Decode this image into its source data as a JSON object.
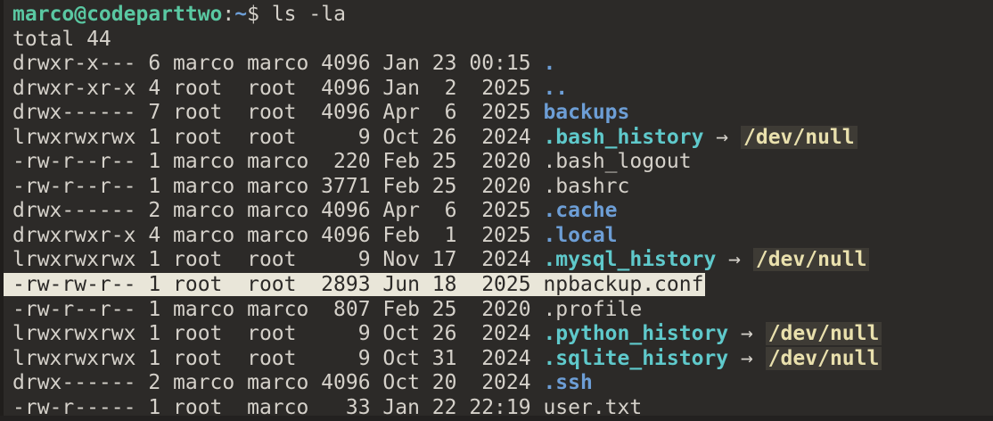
{
  "terminal": {
    "prompt": {
      "user_host": "marco@codeparttwo",
      "separator": ":",
      "cwd": "~",
      "symbol": "$",
      "command": "ls -la"
    },
    "total_line": "total 44",
    "symlink_arrow": "→",
    "colors": {
      "background": "#2c2a28",
      "foreground": "#d5d1ca",
      "prompt_green": "#5ac8a2",
      "directory_blue": "#6d9ed6",
      "symlink_cyan": "#5fc9cb",
      "link_target_yellow": "#e9e0ad",
      "link_target_background": "#3e3b35",
      "selection_background": "#e9e6d9",
      "selection_text": "#2b2927"
    },
    "listing": [
      {
        "perms": "drwxr-x---",
        "links": "6",
        "owner": "marco",
        "group": "marco",
        "size": "4096",
        "month": "Jan",
        "day": "23",
        "time": "00:15",
        "name": ".",
        "type": "dir",
        "selected": false
      },
      {
        "perms": "drwxr-xr-x",
        "links": "4",
        "owner": "root",
        "group": "root",
        "size": "4096",
        "month": "Jan",
        "day": "2",
        "time": "2025",
        "name": "..",
        "type": "dir",
        "selected": false
      },
      {
        "perms": "drwx------",
        "links": "7",
        "owner": "root",
        "group": "root",
        "size": "4096",
        "month": "Apr",
        "day": "6",
        "time": "2025",
        "name": "backups",
        "type": "dir",
        "selected": false
      },
      {
        "perms": "lrwxrwxrwx",
        "links": "1",
        "owner": "root",
        "group": "root",
        "size": "9",
        "month": "Oct",
        "day": "26",
        "time": "2024",
        "name": ".bash_history",
        "type": "symlink",
        "target": "/dev/null",
        "selected": false
      },
      {
        "perms": "-rw-r--r--",
        "links": "1",
        "owner": "marco",
        "group": "marco",
        "size": "220",
        "month": "Feb",
        "day": "25",
        "time": "2020",
        "name": ".bash_logout",
        "type": "file",
        "selected": false
      },
      {
        "perms": "-rw-r--r--",
        "links": "1",
        "owner": "marco",
        "group": "marco",
        "size": "3771",
        "month": "Feb",
        "day": "25",
        "time": "2020",
        "name": ".bashrc",
        "type": "file",
        "selected": false
      },
      {
        "perms": "drwx------",
        "links": "2",
        "owner": "marco",
        "group": "marco",
        "size": "4096",
        "month": "Apr",
        "day": "6",
        "time": "2025",
        "name": ".cache",
        "type": "dir",
        "selected": false
      },
      {
        "perms": "drwxrwxr-x",
        "links": "4",
        "owner": "marco",
        "group": "marco",
        "size": "4096",
        "month": "Feb",
        "day": "1",
        "time": "2025",
        "name": ".local",
        "type": "dir",
        "selected": false
      },
      {
        "perms": "lrwxrwxrwx",
        "links": "1",
        "owner": "root",
        "group": "root",
        "size": "9",
        "month": "Nov",
        "day": "17",
        "time": "2024",
        "name": ".mysql_history",
        "type": "symlink",
        "target": "/dev/null",
        "selected": false
      },
      {
        "perms": "-rw-rw-r--",
        "links": "1",
        "owner": "root",
        "group": "root",
        "size": "2893",
        "month": "Jun",
        "day": "18",
        "time": "2025",
        "name": "npbackup.conf",
        "type": "file",
        "selected": true
      },
      {
        "perms": "-rw-r--r--",
        "links": "1",
        "owner": "marco",
        "group": "marco",
        "size": "807",
        "month": "Feb",
        "day": "25",
        "time": "2020",
        "name": ".profile",
        "type": "file",
        "selected": false
      },
      {
        "perms": "lrwxrwxrwx",
        "links": "1",
        "owner": "root",
        "group": "root",
        "size": "9",
        "month": "Oct",
        "day": "26",
        "time": "2024",
        "name": ".python_history",
        "type": "symlink",
        "target": "/dev/null",
        "selected": false
      },
      {
        "perms": "lrwxrwxrwx",
        "links": "1",
        "owner": "root",
        "group": "root",
        "size": "9",
        "month": "Oct",
        "day": "31",
        "time": "2024",
        "name": ".sqlite_history",
        "type": "symlink",
        "target": "/dev/null",
        "selected": false
      },
      {
        "perms": "drwx------",
        "links": "2",
        "owner": "marco",
        "group": "marco",
        "size": "4096",
        "month": "Oct",
        "day": "20",
        "time": "2024",
        "name": ".ssh",
        "type": "dir",
        "selected": false
      },
      {
        "perms": "-rw-r-----",
        "links": "1",
        "owner": "root",
        "group": "marco",
        "size": "33",
        "month": "Jan",
        "day": "22",
        "time": "22:19",
        "name": "user.txt",
        "type": "file",
        "selected": false
      }
    ]
  }
}
